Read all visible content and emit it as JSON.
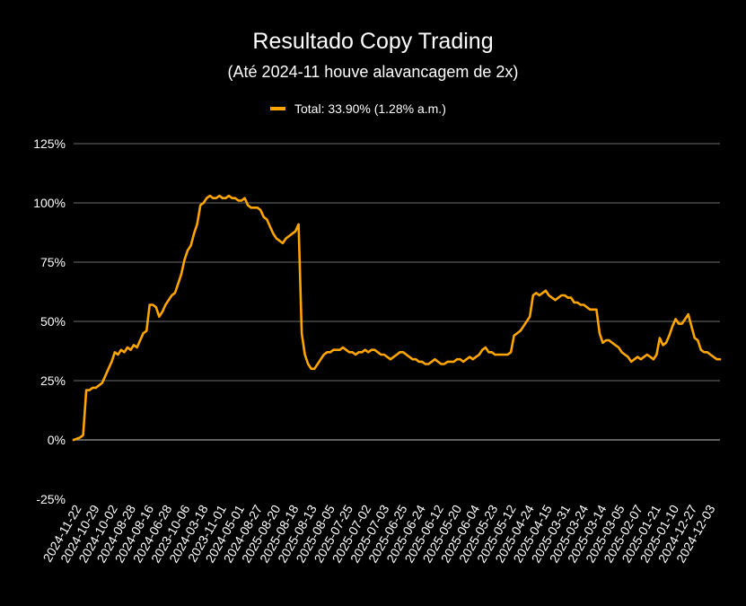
{
  "chart_data": {
    "type": "line",
    "title": "Resultado Copy Trading",
    "subtitle": "(Até 2024-11 houve alavancagem de 2x)",
    "legend_position": "top-center",
    "grid": true,
    "ylim": [
      -25,
      125
    ],
    "ytick_values": [
      -25,
      0,
      25,
      50,
      75,
      100,
      125
    ],
    "ytick_labels": [
      "-25%",
      "0%",
      "25%",
      "50%",
      "75%",
      "100%",
      "125%"
    ],
    "xtick_labels": [
      "2024-11-22",
      "2024-10-29",
      "2024-10-02",
      "2024-08-28",
      "2024-08-16",
      "2024-06-28",
      "2023-10-06",
      "2024-03-18",
      "2023-11-01",
      "2024-05-01",
      "2024-08-27",
      "2025-08-20",
      "2025-08-18",
      "2025-08-13",
      "2025-08-05",
      "2025-07-25",
      "2025-07-02",
      "2025-07-03",
      "2025-06-25",
      "2025-06-24",
      "2025-06-12",
      "2025-05-20",
      "2025-06-04",
      "2025-05-23",
      "2025-05-12",
      "2025-04-24",
      "2025-04-15",
      "2025-03-31",
      "2025-03-24",
      "2025-03-14",
      "2025-03-05",
      "2025-02-07",
      "2025-01-21",
      "2025-01-10",
      "2024-12-27",
      "2024-12-03"
    ],
    "series": [
      {
        "name": "Total: 33.90% (1.28% a.m.)",
        "color": "#FFA500",
        "values": [
          0,
          0.5,
          1,
          2,
          21,
          21,
          22,
          22,
          23,
          24,
          27,
          30,
          33,
          37,
          36,
          38,
          37,
          39,
          38,
          40,
          39,
          42,
          45,
          46,
          57,
          57,
          56,
          52,
          54,
          57,
          59,
          61,
          62,
          66,
          70,
          76,
          80,
          82,
          87,
          91,
          99,
          100,
          102,
          103,
          102,
          102,
          103,
          102,
          102,
          103,
          102,
          102,
          101,
          101,
          102,
          99,
          98,
          98,
          98,
          97,
          94,
          93,
          90,
          87,
          85,
          84,
          83,
          85,
          86,
          87,
          88,
          91,
          45,
          36,
          32,
          30,
          30,
          32,
          34,
          36,
          37,
          37,
          38,
          38,
          38,
          39,
          38,
          37,
          37,
          36,
          37,
          37,
          38,
          37,
          38,
          38,
          37,
          36,
          36,
          35,
          34,
          35,
          36,
          37,
          37,
          36,
          35,
          34,
          34,
          33,
          33,
          32,
          32,
          33,
          34,
          33,
          32,
          32,
          33,
          33,
          33,
          34,
          34,
          33,
          34,
          35,
          34,
          35,
          36,
          38,
          39,
          37,
          37,
          36,
          36,
          36,
          36,
          36,
          37,
          44,
          45,
          46,
          48,
          50,
          52,
          61,
          62,
          61,
          62,
          63,
          61,
          60,
          59,
          60,
          61,
          61,
          60,
          60,
          58,
          58,
          57,
          57,
          56,
          55,
          55,
          55,
          45,
          41,
          42,
          42,
          41,
          40,
          39,
          37,
          36,
          35,
          33,
          34,
          35,
          34,
          35,
          36,
          35,
          34,
          36,
          43,
          40,
          41,
          44,
          48,
          51,
          49,
          49,
          51,
          53,
          48,
          43,
          42,
          38,
          37,
          37,
          36,
          35,
          34,
          34
        ]
      }
    ]
  }
}
